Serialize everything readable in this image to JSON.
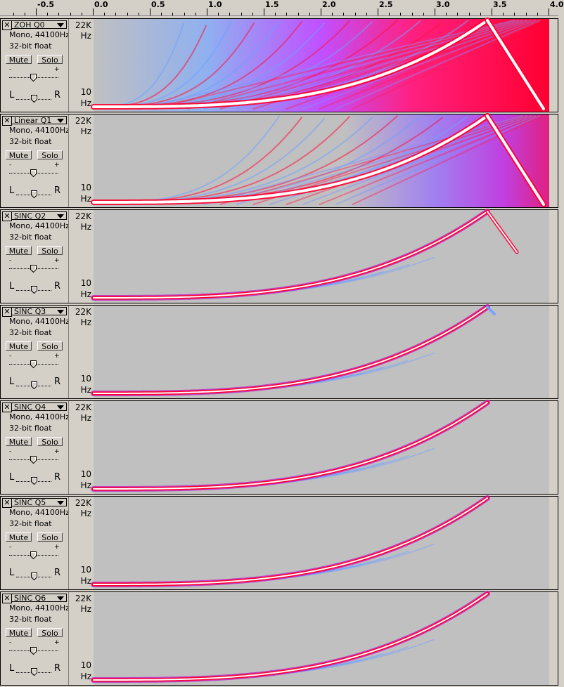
{
  "ruler": {
    "labels": [
      {
        "text": "-0.5"
      },
      {
        "text": "0.0"
      },
      {
        "text": "0.5"
      },
      {
        "text": "1.0"
      },
      {
        "text": "1.5"
      },
      {
        "text": "2.0"
      },
      {
        "text": "2.5"
      },
      {
        "text": "3.0"
      },
      {
        "text": "3.5"
      },
      {
        "text": "4.0"
      }
    ]
  },
  "tracks": [
    {
      "name": "ZOH Q0",
      "format": "Mono, 44100Hz",
      "depth": "32-bit float",
      "mute": "Mute",
      "solo": "Solo",
      "gain_min": "-",
      "gain_max": "+",
      "pan_left": "L",
      "pan_right": "R",
      "freq_top": "22K",
      "freq_bottom": "10",
      "unit": "Hz",
      "style": "zoh"
    },
    {
      "name": "Linear Q1",
      "format": "Mono, 44100Hz",
      "depth": "32-bit float",
      "mute": "Mute",
      "solo": "Solo",
      "gain_min": "-",
      "gain_max": "+",
      "pan_left": "L",
      "pan_right": "R",
      "freq_top": "22K",
      "freq_bottom": "10",
      "unit": "Hz",
      "style": "linear"
    },
    {
      "name": "SINC Q2",
      "format": "Mono, 44100Hz",
      "depth": "32-bit float",
      "mute": "Mute",
      "solo": "Solo",
      "gain_min": "-",
      "gain_max": "+",
      "pan_left": "L",
      "pan_right": "R",
      "freq_top": "22K",
      "freq_bottom": "10",
      "unit": "Hz",
      "style": "sinc2"
    },
    {
      "name": "SINC Q3",
      "format": "Mono, 44100Hz",
      "depth": "32-bit float",
      "mute": "Mute",
      "solo": "Solo",
      "gain_min": "-",
      "gain_max": "+",
      "pan_left": "L",
      "pan_right": "R",
      "freq_top": "22K",
      "freq_bottom": "10",
      "unit": "Hz",
      "style": "sinc3"
    },
    {
      "name": "SINC Q4",
      "format": "Mono, 44100Hz",
      "depth": "32-bit float",
      "mute": "Mute",
      "solo": "Solo",
      "gain_min": "-",
      "gain_max": "+",
      "pan_left": "L",
      "pan_right": "R",
      "freq_top": "22K",
      "freq_bottom": "10",
      "unit": "Hz",
      "style": "sinc"
    },
    {
      "name": "SINC Q5",
      "format": "Mono, 44100Hz",
      "depth": "32-bit float",
      "mute": "Mute",
      "solo": "Solo",
      "gain_min": "-",
      "gain_max": "+",
      "pan_left": "L",
      "pan_right": "R",
      "freq_top": "22K",
      "freq_bottom": "10",
      "unit": "Hz",
      "style": "sinc"
    },
    {
      "name": "SINC Q6",
      "format": "Mono, 44100Hz",
      "depth": "32-bit float",
      "mute": "Mute",
      "solo": "Solo",
      "gain_min": "-",
      "gain_max": "+",
      "pan_left": "L",
      "pan_right": "R",
      "freq_top": "22K",
      "freq_bottom": "10",
      "unit": "Hz",
      "style": "sinc"
    }
  ],
  "colors": {
    "background": "#d4d0c8",
    "spectrogram_bg": "#c0c0c0",
    "low": "#6fa0ff",
    "mid": "#d040ff",
    "high": "#ff0030",
    "peak": "#ffffff"
  }
}
